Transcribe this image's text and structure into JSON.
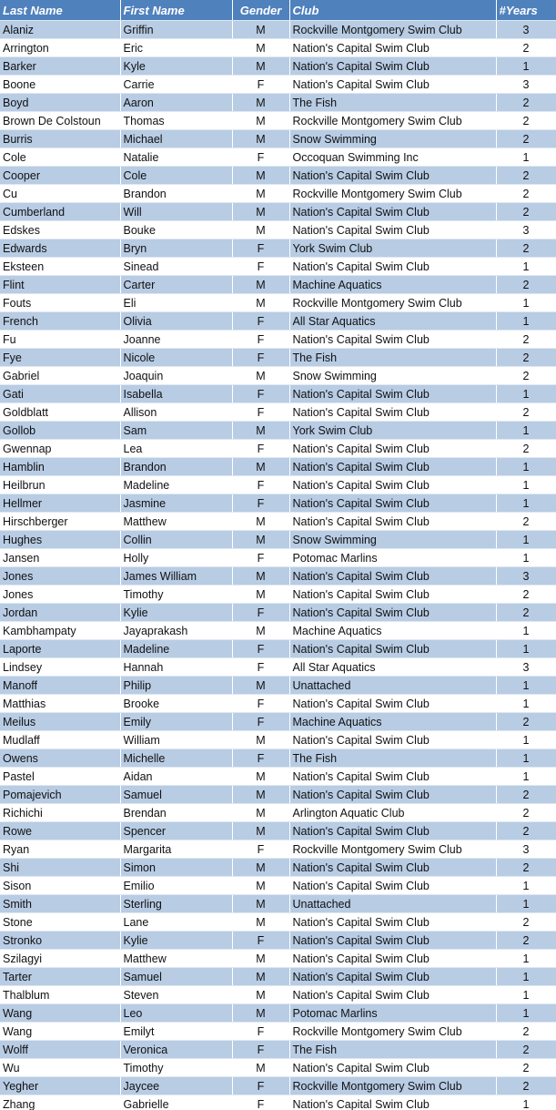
{
  "table": {
    "columns": [
      "Last Name",
      "First Name",
      "Gender",
      "Club",
      "#Years"
    ],
    "rows": [
      [
        "Alaniz",
        "Griffin",
        "M",
        "Rockville Montgomery Swim Club",
        3
      ],
      [
        "Arrington",
        "Eric",
        "M",
        "Nation's Capital Swim Club",
        2
      ],
      [
        "Barker",
        "Kyle",
        "M",
        "Nation's Capital Swim Club",
        1
      ],
      [
        "Boone",
        "Carrie",
        "F",
        "Nation's Capital Swim Club",
        3
      ],
      [
        "Boyd",
        "Aaron",
        "M",
        "The Fish",
        2
      ],
      [
        "Brown De Colstoun",
        "Thomas",
        "M",
        "Rockville Montgomery Swim Club",
        2
      ],
      [
        "Burris",
        "Michael",
        "M",
        "Snow Swimming",
        2
      ],
      [
        "Cole",
        "Natalie",
        "F",
        "Occoquan Swimming Inc",
        1
      ],
      [
        "Cooper",
        "Cole",
        "M",
        "Nation's Capital Swim Club",
        2
      ],
      [
        "Cu",
        "Brandon",
        "M",
        "Rockville Montgomery Swim Club",
        2
      ],
      [
        "Cumberland",
        "Will",
        "M",
        "Nation's Capital Swim Club",
        2
      ],
      [
        "Edskes",
        "Bouke",
        "M",
        "Nation's Capital Swim Club",
        3
      ],
      [
        "Edwards",
        "Bryn",
        "F",
        "York Swim Club",
        2
      ],
      [
        "Eksteen",
        "Sinead",
        "F",
        "Nation's Capital Swim Club",
        1
      ],
      [
        "Flint",
        "Carter",
        "M",
        "Machine Aquatics",
        2
      ],
      [
        "Fouts",
        "Eli",
        "M",
        "Rockville Montgomery Swim Club",
        1
      ],
      [
        "French",
        "Olivia",
        "F",
        "All Star Aquatics",
        1
      ],
      [
        "Fu",
        "Joanne",
        "F",
        "Nation's Capital Swim Club",
        2
      ],
      [
        "Fye",
        "Nicole",
        "F",
        "The Fish",
        2
      ],
      [
        "Gabriel",
        "Joaquin",
        "M",
        "Snow Swimming",
        2
      ],
      [
        "Gati",
        "Isabella",
        "F",
        "Nation's Capital Swim Club",
        1
      ],
      [
        "Goldblatt",
        "Allison",
        "F",
        "Nation's Capital Swim Club",
        2
      ],
      [
        "Gollob",
        "Sam",
        "M",
        "York Swim Club",
        1
      ],
      [
        "Gwennap",
        "Lea",
        "F",
        "Nation's Capital Swim Club",
        2
      ],
      [
        "Hamblin",
        "Brandon",
        "M",
        "Nation's Capital Swim Club",
        1
      ],
      [
        "Heilbrun",
        "Madeline",
        "F",
        "Nation's Capital Swim Club",
        1
      ],
      [
        "Hellmer",
        "Jasmine",
        "F",
        "Nation's Capital Swim Club",
        1
      ],
      [
        "Hirschberger",
        "Matthew",
        "M",
        "Nation's Capital Swim Club",
        2
      ],
      [
        "Hughes",
        "Collin",
        "M",
        "Snow Swimming",
        1
      ],
      [
        "Jansen",
        "Holly",
        "F",
        "Potomac Marlins",
        1
      ],
      [
        "Jones",
        "James William",
        "M",
        "Nation's Capital Swim Club",
        3
      ],
      [
        "Jones",
        "Timothy",
        "M",
        "Nation's Capital Swim Club",
        2
      ],
      [
        "Jordan",
        "Kylie",
        "F",
        "Nation's Capital Swim Club",
        2
      ],
      [
        "Kambhampaty",
        "Jayaprakash",
        "M",
        "Machine Aquatics",
        1
      ],
      [
        "Laporte",
        "Madeline",
        "F",
        "Nation's Capital Swim Club",
        1
      ],
      [
        "Lindsey",
        "Hannah",
        "F",
        "All Star Aquatics",
        3
      ],
      [
        "Manoff",
        "Philip",
        "M",
        "Unattached",
        1
      ],
      [
        "Matthias",
        "Brooke",
        "F",
        "Nation's Capital Swim Club",
        1
      ],
      [
        "Meilus",
        "Emily",
        "F",
        "Machine Aquatics",
        2
      ],
      [
        "Mudlaff",
        "William",
        "M",
        "Nation's Capital Swim Club",
        1
      ],
      [
        "Owens",
        "Michelle",
        "F",
        "The Fish",
        1
      ],
      [
        "Pastel",
        "Aidan",
        "M",
        "Nation's Capital Swim Club",
        1
      ],
      [
        "Pomajevich",
        "Samuel",
        "M",
        "Nation's Capital Swim Club",
        2
      ],
      [
        "Richichi",
        "Brendan",
        "M",
        "Arlington Aquatic Club",
        2
      ],
      [
        "Rowe",
        "Spencer",
        "M",
        "Nation's Capital Swim Club",
        2
      ],
      [
        "Ryan",
        "Margarita",
        "F",
        "Rockville Montgomery Swim Club",
        3
      ],
      [
        "Shi",
        "Simon",
        "M",
        "Nation's Capital Swim Club",
        2
      ],
      [
        "Sison",
        "Emilio",
        "M",
        "Nation's Capital Swim Club",
        1
      ],
      [
        "Smith",
        "Sterling",
        "M",
        "Unattached",
        1
      ],
      [
        "Stone",
        "Lane",
        "M",
        "Nation's Capital Swim Club",
        2
      ],
      [
        "Stronko",
        "Kylie",
        "F",
        "Nation's Capital Swim Club",
        2
      ],
      [
        "Szilagyi",
        "Matthew",
        "M",
        "Nation's Capital Swim Club",
        1
      ],
      [
        "Tarter",
        "Samuel",
        "M",
        "Nation's Capital Swim Club",
        1
      ],
      [
        "Thalblum",
        "Steven",
        "M",
        "Nation's Capital Swim Club",
        1
      ],
      [
        "Wang",
        "Leo",
        "M",
        "Potomac Marlins",
        1
      ],
      [
        "Wang",
        "Emilyt",
        "F",
        "Rockville Montgomery Swim Club",
        2
      ],
      [
        "Wolff",
        "Veronica",
        "F",
        "The Fish",
        2
      ],
      [
        "Wu",
        "Timothy",
        "M",
        "Nation's Capital Swim Club",
        2
      ],
      [
        "Yegher",
        "Jaycee",
        "F",
        "Rockville Montgomery Swim Club",
        2
      ],
      [
        "Zhang",
        "Gabrielle",
        "F",
        "Nation's Capital Swim Club",
        1
      ]
    ]
  }
}
